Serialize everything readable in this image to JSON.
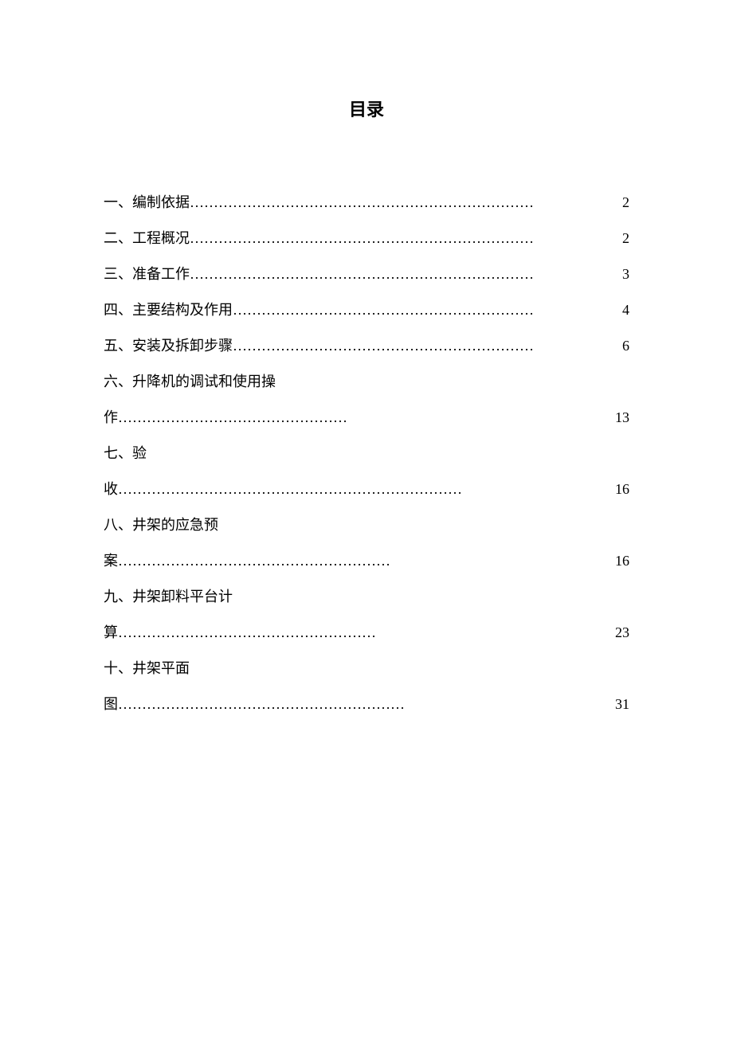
{
  "title": "目录",
  "toc": {
    "entries": [
      {
        "label": "一、编制依据",
        "dots": "………………………………………………………………",
        "page": "2"
      },
      {
        "label": "二、工程概况",
        "dots": "………………………………………………………………",
        "page": "2"
      },
      {
        "label": "三、准备工作",
        "dots": "………………………………………………………………",
        "page": "3"
      },
      {
        "label": "四、主要结构及作用",
        "dots": "………………………………………………………",
        "page": "4"
      },
      {
        "label": "五、安装及拆卸步骤",
        "dots": "………………………………………………………",
        "page": "6"
      },
      {
        "line1": "六、升降机的调试和使用操",
        "cont_char": "作",
        "dots": "…………………………………………",
        "page": "13"
      },
      {
        "line1": "七、验",
        "cont_char": "收",
        "dots": "………………………………………………………………",
        "page": "16"
      },
      {
        "line1": "八、井架的应急预",
        "cont_char": "案",
        "dots": "…………………………………………………",
        "page": "16"
      },
      {
        "line1": "九、井架卸料平台计",
        "cont_char": "算",
        "dots": "………………………………………………",
        "page": "23"
      },
      {
        "line1": "十、井架平面",
        "cont_char": "图",
        "dots": "……………………………………………………",
        "page": "31"
      }
    ]
  }
}
